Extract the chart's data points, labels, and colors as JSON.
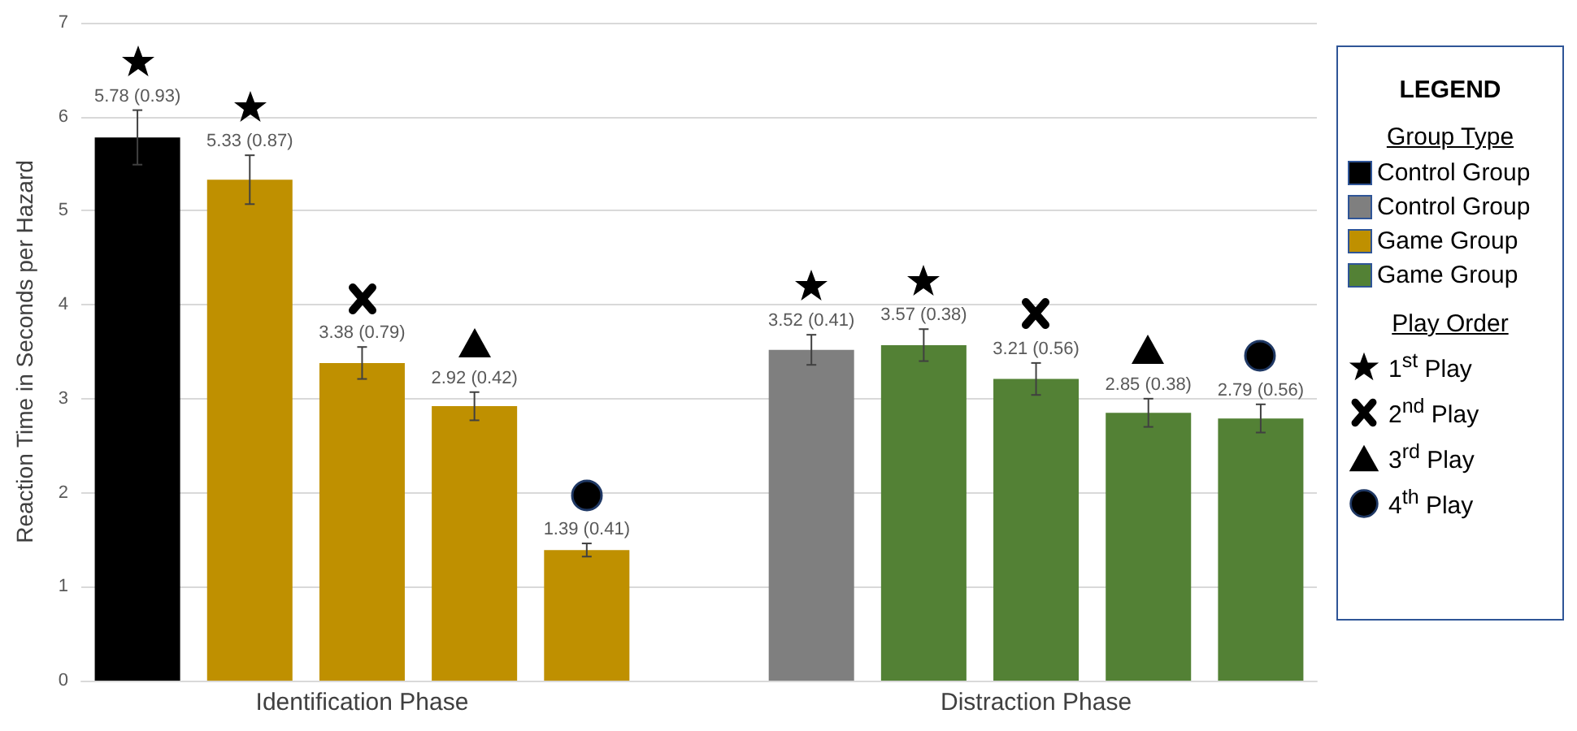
{
  "chart_data": {
    "type": "bar",
    "categories": [
      null,
      null,
      "Identification Phase",
      null,
      null,
      null,
      null,
      null,
      "Distraction Phase",
      null,
      null
    ],
    "ylabel": "Reaction Time in Seconds per Hazard",
    "ylim": [
      0,
      7
    ],
    "yticks": [
      0,
      1,
      2,
      3,
      4,
      5,
      6,
      7
    ],
    "grid": "y",
    "legend": "right",
    "legend_title": "LEGEND",
    "annotations": [
      "Group Type",
      "Play Order",
      "1$^{st}$ Play",
      "2$^{nd}$ Play",
      "3$^{rd}$ Play",
      "4$^{th}$ Play"
    ],
    "series": [
      {
        "name": "Control Group",
        "color": "#000000",
        "values": [
          5.78,
          null,
          null,
          null,
          null,
          null,
          null,
          null,
          null,
          null,
          null
        ],
        "errors": [
          0.29,
          null,
          null,
          null,
          null,
          null,
          null,
          null,
          null,
          null,
          null
        ],
        "value_labels": [
          "5.78 (0.93)",
          null,
          null,
          null,
          null,
          null,
          null,
          null,
          null,
          null,
          null
        ]
      },
      {
        "name": "Control Group",
        "color": "#7f7f7f",
        "values": [
          null,
          null,
          null,
          null,
          null,
          null,
          3.52,
          null,
          null,
          null,
          null
        ],
        "errors": [
          null,
          null,
          null,
          null,
          null,
          null,
          0.16,
          null,
          null,
          null,
          null
        ],
        "value_labels": [
          null,
          null,
          null,
          null,
          null,
          null,
          "3.52 (0.41)",
          null,
          null,
          null,
          null
        ]
      },
      {
        "name": "Game Group",
        "color": "#bf9000",
        "values": [
          null,
          5.33,
          3.38,
          2.92,
          1.39,
          null,
          null,
          null,
          null,
          null,
          null
        ],
        "errors": [
          null,
          0.26,
          0.17,
          0.15,
          0.07,
          null,
          null,
          null,
          null,
          null,
          null
        ],
        "value_labels": [
          null,
          "5.33 (0.87)",
          "3.38 (0.79)",
          "2.92 (0.42)",
          "1.39 (0.41)",
          null,
          null,
          null,
          null,
          null,
          null
        ]
      },
      {
        "name": "Game Group",
        "color": "#538135",
        "values": [
          null,
          null,
          null,
          null,
          null,
          null,
          null,
          3.57,
          3.21,
          2.85,
          2.79
        ],
        "errors": [
          null,
          null,
          null,
          null,
          null,
          null,
          null,
          0.17,
          0.17,
          0.15,
          0.15
        ],
        "value_labels": [
          null,
          null,
          null,
          null,
          null,
          null,
          null,
          "3.57 (0.38)",
          "3.21 (0.56)",
          "2.85 (0.38)",
          "2.79 (0.56)"
        ]
      }
    ]
  }
}
